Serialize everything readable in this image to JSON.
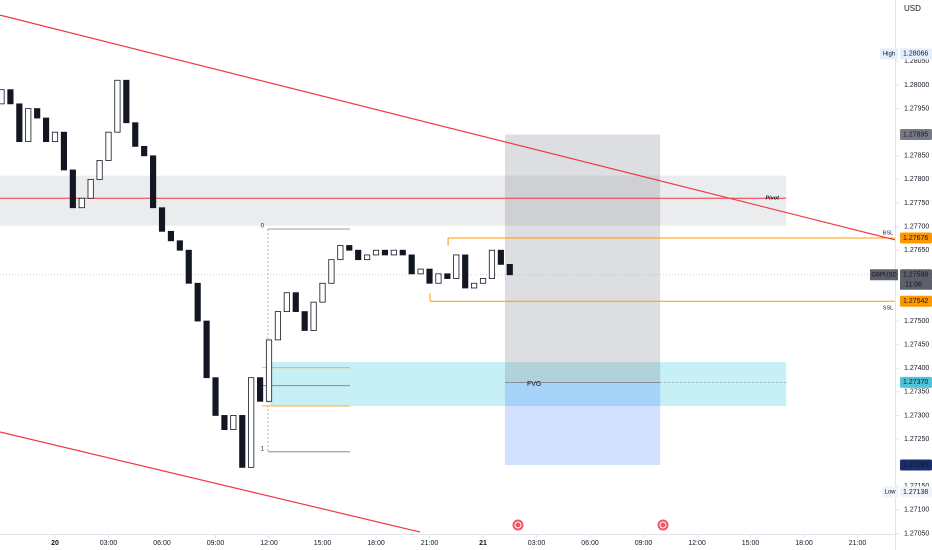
{
  "chart_data": {
    "type": "candlestick",
    "currency": "USD",
    "symbol": "GBPUSD",
    "countdown": "11:06",
    "up_color": "#ffffff",
    "down_color": "#131722",
    "wick_color": "#131722",
    "x": [
      -3,
      -2.5,
      -2,
      -1.5,
      -1,
      -0.5,
      0,
      0.5,
      1,
      1.5,
      2,
      2.5,
      3,
      3.5,
      4,
      4.5,
      5,
      5.5,
      6,
      6.5,
      7,
      7.5,
      8,
      8.5,
      9,
      9.5,
      10,
      10.5,
      11,
      11.5,
      12,
      12.5,
      13,
      13.5,
      14,
      14.5,
      15,
      15.5,
      16,
      16.5,
      17,
      17.5,
      18,
      18.5,
      19,
      19.5,
      20,
      20.5,
      21,
      21.5,
      22,
      22.5,
      23,
      23.5,
      24,
      24.5,
      25,
      25.5
    ],
    "open": [
      1.2796,
      1.2799,
      1.2796,
      1.2788,
      1.2795,
      1.2793,
      1.2788,
      1.279,
      1.2782,
      1.2774,
      1.2776,
      1.278,
      1.2784,
      1.279,
      1.2801,
      1.2792,
      1.2787,
      1.2785,
      1.2774,
      1.2769,
      1.2767,
      1.2765,
      1.2758,
      1.275,
      1.2738,
      1.273,
      1.2727,
      1.273,
      1.2719,
      1.2738,
      1.2733,
      1.2746,
      1.2752,
      1.2756,
      1.2752,
      1.2748,
      1.2754,
      1.2758,
      1.2763,
      1.2766,
      1.2765,
      1.2763,
      1.2764,
      1.2765,
      1.2764,
      1.2765,
      1.2764,
      1.276,
      1.2761,
      1.2758,
      1.276,
      1.2759,
      1.2764,
      1.2757,
      1.2758,
      1.2759,
      1.2765,
      1.2762
    ],
    "high": {
      "name": "High",
      "value": 1.28066,
      "label": "1.28066"
    },
    "low": {
      "name": "Low",
      "value": 1.27138,
      "label": "1.27138"
    },
    "close": [
      1.2799,
      1.2796,
      1.2788,
      1.2795,
      1.2793,
      1.2788,
      1.279,
      1.2782,
      1.2774,
      1.2776,
      1.278,
      1.2784,
      1.279,
      1.2801,
      1.2792,
      1.2787,
      1.2785,
      1.2774,
      1.2769,
      1.2767,
      1.2765,
      1.2758,
      1.275,
      1.2738,
      1.273,
      1.2727,
      1.273,
      1.2719,
      1.2738,
      1.2733,
      1.2746,
      1.2752,
      1.2756,
      1.2752,
      1.2748,
      1.2754,
      1.2758,
      1.2763,
      1.2766,
      1.2765,
      1.2763,
      1.2764,
      1.2765,
      1.2764,
      1.2765,
      1.2764,
      1.276,
      1.2761,
      1.2758,
      1.276,
      1.2759,
      1.2764,
      1.2757,
      1.2758,
      1.2759,
      1.2765,
      1.2762,
      1.27598
    ],
    "xlim": [
      -3.084,
      47.1
    ],
    "xticks": [
      {
        "value": 0,
        "label": "20"
      },
      {
        "value": 3,
        "label": "03:00"
      },
      {
        "value": 6,
        "label": "06:00"
      },
      {
        "value": 9,
        "label": "09:00"
      },
      {
        "value": 12,
        "label": "12:00"
      },
      {
        "value": 15,
        "label": "15:00"
      },
      {
        "value": 18,
        "label": "18:00"
      },
      {
        "value": 21,
        "label": "21:00"
      },
      {
        "value": 24,
        "label": "21"
      },
      {
        "value": 27,
        "label": "03:00"
      },
      {
        "value": 30,
        "label": "06:00"
      },
      {
        "value": 33,
        "label": "09:00"
      },
      {
        "value": 36,
        "label": "12:00"
      },
      {
        "value": 39,
        "label": "15:00"
      },
      {
        "value": 42,
        "label": "18:00"
      },
      {
        "value": 45,
        "label": "21:00"
      }
    ],
    "ylim": [
      1.27015,
      1.2818
    ],
    "yticks": [
      {
        "value": 1.2805,
        "label": "1.28050"
      },
      {
        "value": 1.28,
        "label": "1.28000"
      },
      {
        "value": 1.2795,
        "label": "1.27950"
      },
      {
        "value": 1.2785,
        "label": "1.27850"
      },
      {
        "value": 1.278,
        "label": "1.27800"
      },
      {
        "value": 1.2775,
        "label": "1.27750"
      },
      {
        "value": 1.277,
        "label": "1.27700"
      },
      {
        "value": 1.2765,
        "label": "1.27650"
      },
      {
        "value": 1.275,
        "label": "1.27500"
      },
      {
        "value": 1.2745,
        "label": "1.27450"
      },
      {
        "value": 1.274,
        "label": "1.27400"
      },
      {
        "value": 1.2735,
        "label": "1.27350"
      },
      {
        "value": 1.273,
        "label": "1.27300"
      },
      {
        "value": 1.2725,
        "label": "1.27250"
      },
      {
        "value": 1.2715,
        "label": "1.27150"
      },
      {
        "value": 1.271,
        "label": "1.27100"
      },
      {
        "value": 1.2705,
        "label": "1.27050"
      }
    ],
    "grid": false,
    "last_price": {
      "value": 1.27598,
      "label": "1.27598"
    },
    "pivot": {
      "name": "Pivot",
      "value": 1.2776,
      "color": "#f23645"
    },
    "trendlines": [
      {
        "color": "#f23645",
        "x": [
          -3.084,
          47.1
        ],
        "y": [
          1.28148,
          1.27672
        ]
      },
      {
        "color": "#f23645",
        "x": [
          -3.084,
          20.47
        ],
        "y": [
          1.27265,
          1.27053
        ]
      }
    ],
    "zones": [
      {
        "color": "#e6e7ea",
        "xlim": [
          -3.084,
          41.0
        ],
        "ylim": [
          1.27702,
          1.27808
        ]
      }
    ],
    "fvg": {
      "name": "FVG",
      "color": "#c6eff6",
      "xlim": [
        12.06,
        41.0
      ],
      "ylim": [
        1.2732,
        1.27413
      ]
    },
    "liquidity": [
      {
        "name": "BSL",
        "value": 1.27676,
        "label": "1.27676",
        "x": 22.04,
        "color": "#ff9800"
      },
      {
        "name": "SSL",
        "value": 1.27542,
        "label": "1.27542",
        "x": 21.03,
        "color": "#ff9800"
      }
    ],
    "position": {
      "xlim": [
        25.23,
        33.93
      ],
      "target": {
        "value": 1.27895,
        "label": "1.27895"
      },
      "entry": {
        "value": 1.2737,
        "label": "1.27370"
      },
      "stop": {
        "value": 1.27195,
        "label": "1.27195"
      }
    },
    "fib": {
      "xlim": [
        11.94,
        16.54
      ],
      "levels": [
        {
          "value": 1.27695,
          "label": "0"
        },
        {
          "value": 1.27223,
          "label": "1"
        }
      ],
      "inner": [
        1.27401,
        1.27363,
        1.2732
      ]
    }
  }
}
